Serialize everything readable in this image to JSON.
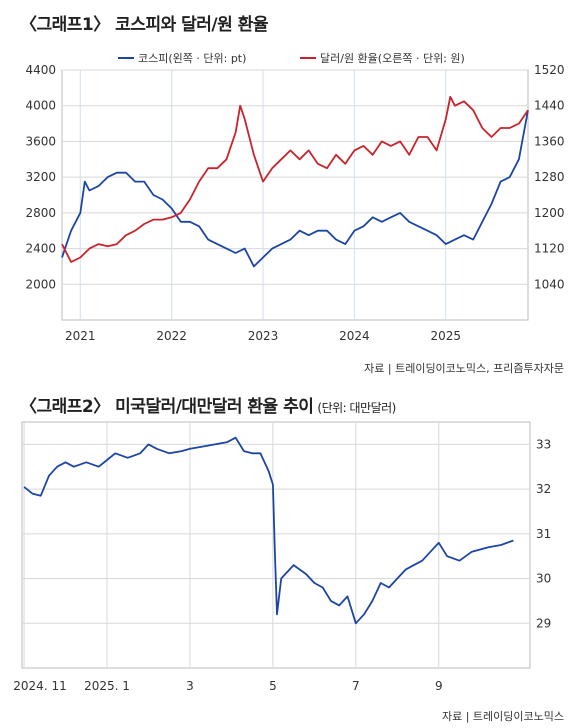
{
  "chart_data": [
    {
      "type": "line",
      "title": "〈그래프1〉 코스피와 달러/원 환율",
      "source": "자료 | 트레이딩이코노믹스, 프리즘투자자문",
      "x_ticks": [
        "2021",
        "2022",
        "2023",
        "2024",
        "2025"
      ],
      "y_left": {
        "ticks": [
          2000,
          2400,
          2800,
          3200,
          3600,
          4000,
          4400
        ],
        "range": [
          1600,
          4400
        ]
      },
      "y_right": {
        "ticks": [
          1040,
          1120,
          1200,
          1280,
          1360,
          1440,
          1520
        ],
        "range": [
          960,
          1520
        ]
      },
      "series": [
        {
          "name": "코스피(왼쪽 · 단위: pt)",
          "color": "#1c46a4",
          "axis": "left",
          "x": [
            2020.8,
            2020.9,
            2021.0,
            2021.05,
            2021.1,
            2021.2,
            2021.3,
            2021.4,
            2021.5,
            2021.6,
            2021.7,
            2021.8,
            2021.9,
            2022.0,
            2022.1,
            2022.2,
            2022.3,
            2022.4,
            2022.5,
            2022.6,
            2022.7,
            2022.8,
            2022.9,
            2023.0,
            2023.1,
            2023.2,
            2023.3,
            2023.4,
            2023.5,
            2023.6,
            2023.7,
            2023.8,
            2023.9,
            2024.0,
            2024.1,
            2024.2,
            2024.3,
            2024.4,
            2024.5,
            2024.6,
            2024.7,
            2024.8,
            2024.9,
            2025.0,
            2025.1,
            2025.2,
            2025.3,
            2025.4,
            2025.5,
            2025.6,
            2025.7,
            2025.8,
            2025.9
          ],
          "y": [
            2300,
            2600,
            2800,
            3150,
            3050,
            3100,
            3200,
            3250,
            3250,
            3150,
            3150,
            3000,
            2950,
            2850,
            2700,
            2700,
            2650,
            2500,
            2450,
            2400,
            2350,
            2400,
            2200,
            2300,
            2400,
            2450,
            2500,
            2600,
            2550,
            2600,
            2600,
            2500,
            2450,
            2600,
            2650,
            2750,
            2700,
            2750,
            2800,
            2700,
            2650,
            2600,
            2550,
            2450,
            2500,
            2550,
            2500,
            2700,
            2900,
            3150,
            3200,
            3400,
            3950
          ]
        },
        {
          "name": "달러/원 환율(오른쪽 · 단위: 원)",
          "color": "#c9232b",
          "axis": "right",
          "x": [
            2020.8,
            2020.9,
            2021.0,
            2021.1,
            2021.2,
            2021.3,
            2021.4,
            2021.5,
            2021.6,
            2021.7,
            2021.8,
            2021.9,
            2022.0,
            2022.1,
            2022.2,
            2022.3,
            2022.4,
            2022.5,
            2022.6,
            2022.7,
            2022.75,
            2022.8,
            2022.9,
            2023.0,
            2023.1,
            2023.2,
            2023.3,
            2023.4,
            2023.5,
            2023.6,
            2023.7,
            2023.8,
            2023.9,
            2024.0,
            2024.1,
            2024.2,
            2024.3,
            2024.4,
            2024.5,
            2024.6,
            2024.7,
            2024.8,
            2024.9,
            2025.0,
            2025.05,
            2025.1,
            2025.2,
            2025.3,
            2025.4,
            2025.5,
            2025.6,
            2025.7,
            2025.8,
            2025.9
          ],
          "y": [
            1130,
            1090,
            1100,
            1120,
            1130,
            1125,
            1130,
            1150,
            1160,
            1175,
            1185,
            1185,
            1190,
            1200,
            1230,
            1270,
            1300,
            1300,
            1320,
            1380,
            1440,
            1410,
            1330,
            1270,
            1300,
            1320,
            1340,
            1320,
            1340,
            1310,
            1300,
            1330,
            1310,
            1340,
            1350,
            1330,
            1360,
            1350,
            1360,
            1330,
            1370,
            1370,
            1340,
            1410,
            1460,
            1440,
            1450,
            1430,
            1390,
            1370,
            1390,
            1390,
            1400,
            1430
          ]
        }
      ]
    },
    {
      "type": "line",
      "title": "〈그래프2〉 미국달러/대만달러 환율 추이",
      "unit": "(단위: 대만달러)",
      "source": "자료 | 트레이딩이코노믹스",
      "x_ticks": [
        "2024. 11",
        "2025. 1",
        "3",
        "5",
        "7",
        "9"
      ],
      "x_tick_values": [
        0,
        2,
        4,
        6,
        8,
        10
      ],
      "y": {
        "ticks": [
          29,
          30,
          31,
          32,
          33
        ],
        "range": [
          28,
          33.5
        ]
      },
      "series": [
        {
          "color": "#1c46a4",
          "x": [
            0,
            0.2,
            0.4,
            0.6,
            0.8,
            1.0,
            1.2,
            1.5,
            1.8,
            2.0,
            2.2,
            2.5,
            2.8,
            3.0,
            3.2,
            3.5,
            3.8,
            4.0,
            4.3,
            4.6,
            4.9,
            5.1,
            5.3,
            5.5,
            5.7,
            5.9,
            6.0,
            6.05,
            6.1,
            6.2,
            6.5,
            6.8,
            7.0,
            7.2,
            7.4,
            7.6,
            7.8,
            8.0,
            8.2,
            8.4,
            8.6,
            8.8,
            9.0,
            9.2,
            9.4,
            9.6,
            9.8,
            10.0,
            10.2,
            10.5,
            10.8,
            11.0,
            11.2,
            11.5,
            11.8
          ],
          "y": [
            32.05,
            31.9,
            31.85,
            32.3,
            32.5,
            32.6,
            32.5,
            32.6,
            32.5,
            32.65,
            32.8,
            32.7,
            32.8,
            33.0,
            32.9,
            32.8,
            32.85,
            32.9,
            32.95,
            33.0,
            33.05,
            33.15,
            32.85,
            32.8,
            32.8,
            32.4,
            32.1,
            30.5,
            29.2,
            30.0,
            30.3,
            30.1,
            29.9,
            29.8,
            29.5,
            29.4,
            29.6,
            29.0,
            29.2,
            29.5,
            29.9,
            29.8,
            30.0,
            30.2,
            30.3,
            30.4,
            30.6,
            30.8,
            30.5,
            30.4,
            30.6,
            30.65,
            30.7,
            30.75,
            30.85
          ]
        }
      ]
    }
  ]
}
